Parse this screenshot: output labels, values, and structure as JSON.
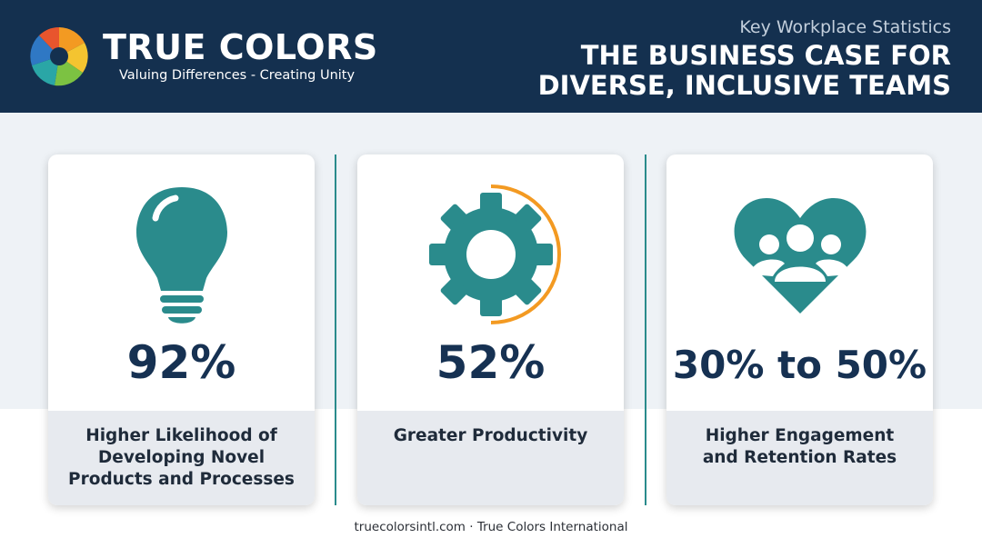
{
  "header": {
    "brand": "TRUE COLORS",
    "tagline": "Valuing Differences - Creating Unity",
    "kicker": "Key Workplace Statistics",
    "title_lines": [
      "THE BUSINESS CASE FOR",
      "DIVERSE, INCLUSIVE TEAMS"
    ]
  },
  "cards": [
    {
      "stat": "92%",
      "label_lines": [
        "Higher Likelihood of",
        "Developing Novel",
        "Products and Processes"
      ]
    },
    {
      "stat": "52%",
      "label_lines": [
        "Greater Productivity"
      ]
    },
    {
      "stat": "30% to 50%",
      "label_lines": [
        "Higher Engagement",
        "and Retention Rates"
      ]
    }
  ],
  "footer": "truecolorsintl.com · True Colors International"
}
